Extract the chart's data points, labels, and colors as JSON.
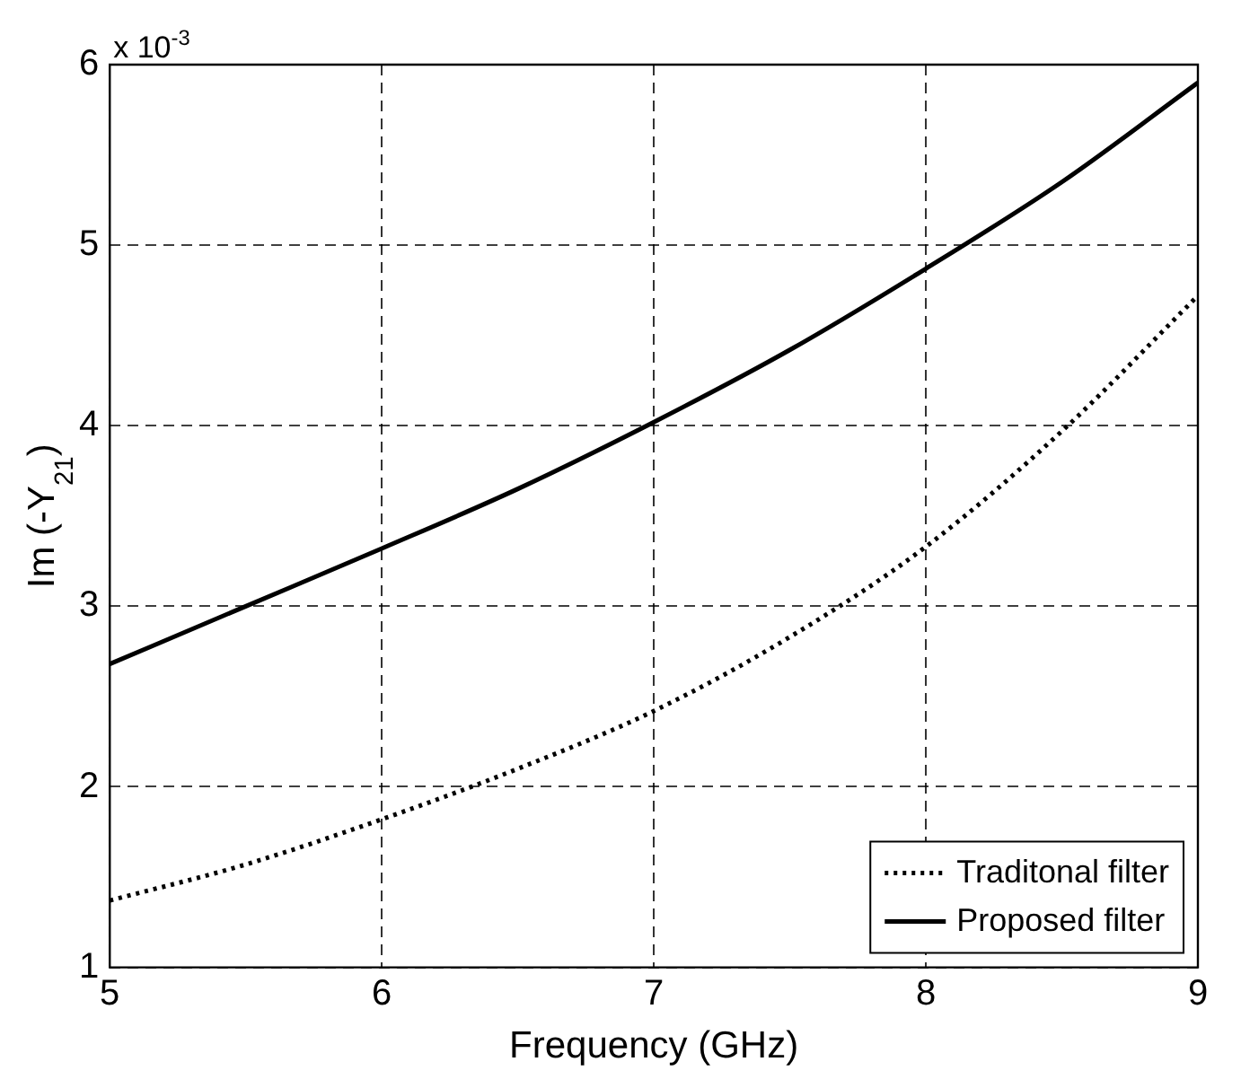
{
  "chart_data": {
    "type": "line",
    "xlabel": "Frequency (GHz)",
    "ylabel": "Im (-Y$_{21}$)",
    "annotations": [
      "x 10$^{-3}$"
    ],
    "x": [
      5,
      5.5,
      6,
      6.5,
      7,
      7.5,
      8,
      8.5,
      9
    ],
    "series": [
      {
        "name": "Traditonal filter",
        "color": "#000000",
        "line_style": "dotted",
        "values": [
          1.37,
          1.57,
          1.82,
          2.1,
          2.42,
          2.83,
          3.33,
          3.97,
          4.72
        ]
      },
      {
        "name": "Proposed filter",
        "color": "#000000",
        "line_style": "solid",
        "values": [
          2.68,
          3.0,
          3.32,
          3.65,
          4.02,
          4.42,
          4.87,
          5.35,
          5.9
        ]
      }
    ],
    "xlim": [
      5,
      9
    ],
    "xticks": [
      5,
      6,
      7,
      8,
      9
    ],
    "ylim": [
      1,
      6
    ],
    "yticks": [
      1,
      2,
      3,
      4,
      5,
      6
    ],
    "grid": true,
    "legend": "bottom right",
    "marker": "none"
  }
}
